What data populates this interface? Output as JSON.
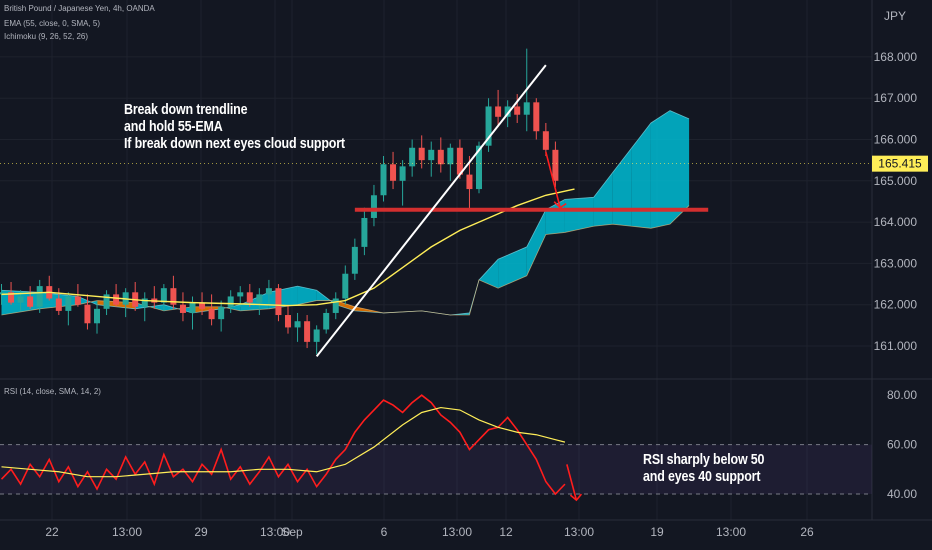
{
  "header": {
    "symbol_line": "British Pound / Japanese Yen, 4h, OANDA",
    "ema_line": "EMA (55, close, 0, SMA, 5)",
    "ichimoku_line": "Ichimoku (9, 26, 52, 26)",
    "rsi_line": "RSI (14, close, SMA, 14, 2)",
    "currency": "JPY"
  },
  "annotations": {
    "main": [
      "Break down trendline",
      "and hold 55-EMA",
      "If break down next eyes cloud support"
    ],
    "rsi": [
      "RSI sharply below 50",
      "and eyes 40 support"
    ]
  },
  "colors": {
    "background": "#131722",
    "up_candle": "#26a69a",
    "down_candle": "#ef5350",
    "ema": "#ffee58",
    "cloud_bull": "#00bcd4",
    "cloud_bear": "#f57c00",
    "trendline": "#ffffff",
    "support": "#d32f2f",
    "rsi": "#ff1d1d",
    "rsi_ma": "#ffee58",
    "price_tag": "#ffee58"
  },
  "chart_data": [
    {
      "type": "candlestick",
      "title": "British Pound / Japanese Yen, 4h, OANDA",
      "y_axis": {
        "unit": "JPY",
        "ticks": [
          "161.000",
          "162.000",
          "163.000",
          "164.000",
          "165.000",
          "166.000",
          "167.000",
          "168.000"
        ],
        "range": [
          160.55,
          168.4
        ]
      },
      "x_axis": {
        "ticks": [
          "22",
          "13:00",
          "29",
          "13:00",
          "Sep",
          "6",
          "13:00",
          "12",
          "13:00",
          "19",
          "13:00",
          "26"
        ]
      },
      "last_price": "165.415",
      "ema_55_path": [
        [
          0,
          162.25
        ],
        [
          5,
          162.3
        ],
        [
          10,
          162.2
        ],
        [
          15,
          162.1
        ],
        [
          20,
          162.05
        ],
        [
          25,
          162.02
        ],
        [
          30,
          161.98
        ],
        [
          33,
          162.0
        ],
        [
          36,
          162.1
        ],
        [
          39,
          162.4
        ],
        [
          42,
          162.9
        ],
        [
          45,
          163.4
        ],
        [
          48,
          163.8
        ],
        [
          51,
          164.1
        ],
        [
          54,
          164.4
        ],
        [
          57,
          164.65
        ],
        [
          60,
          164.8
        ]
      ],
      "trendline": {
        "from": [
          33,
          160.75
        ],
        "to": [
          57,
          167.8
        ]
      },
      "support_line": {
        "price": 164.3,
        "from": 37,
        "to": 74
      },
      "arrow": {
        "from": [
          57,
          165.7
        ],
        "to": [
          58.5,
          164.35
        ]
      },
      "ichimoku_cloud": [
        [
          0,
          162.35,
          161.75
        ],
        [
          4,
          162.3,
          161.9
        ],
        [
          8,
          162.2,
          162.0
        ],
        [
          10,
          162.0,
          162.1
        ],
        [
          14,
          161.9,
          162.05
        ],
        [
          17,
          162.0,
          161.85
        ],
        [
          20,
          161.8,
          161.95
        ],
        [
          23,
          161.9,
          161.95
        ],
        [
          25,
          162.0,
          161.85
        ],
        [
          28,
          162.3,
          161.9
        ],
        [
          31,
          162.45,
          162.0
        ],
        [
          33,
          162.35,
          162.1
        ],
        [
          35,
          162.0,
          162.1
        ],
        [
          37,
          161.85,
          161.95
        ],
        [
          40,
          161.8,
          161.8
        ],
        [
          44,
          161.85,
          161.85
        ],
        [
          47,
          161.75,
          161.75
        ],
        [
          49,
          161.8,
          161.75
        ],
        [
          50,
          162.6,
          162.6
        ],
        [
          52,
          163.1,
          162.4
        ],
        [
          55,
          163.4,
          162.7
        ],
        [
          57,
          164.3,
          163.7
        ],
        [
          59,
          164.55,
          163.75
        ],
        [
          62,
          164.6,
          163.9
        ],
        [
          64,
          165.2,
          163.95
        ],
        [
          66,
          165.8,
          163.9
        ],
        [
          68,
          166.4,
          163.85
        ],
        [
          70,
          166.7,
          163.95
        ],
        [
          72,
          166.5,
          164.4
        ]
      ],
      "candles": [
        [
          0,
          162.25,
          162.5,
          162.0,
          162.3
        ],
        [
          1,
          162.3,
          162.55,
          162.0,
          162.05
        ],
        [
          2,
          162.05,
          162.35,
          161.85,
          162.2
        ],
        [
          3,
          162.2,
          162.45,
          161.9,
          161.95
        ],
        [
          4,
          161.95,
          162.6,
          161.8,
          162.45
        ],
        [
          5,
          162.45,
          162.7,
          162.1,
          162.15
        ],
        [
          6,
          162.15,
          162.4,
          161.75,
          161.85
        ],
        [
          7,
          161.85,
          162.3,
          161.5,
          162.2
        ],
        [
          8,
          162.2,
          162.5,
          161.95,
          162.0
        ],
        [
          9,
          162.0,
          162.25,
          161.4,
          161.55
        ],
        [
          10,
          161.55,
          162.1,
          161.3,
          161.9
        ],
        [
          11,
          161.9,
          162.35,
          161.75,
          162.25
        ],
        [
          12,
          162.25,
          162.5,
          161.95,
          162.0
        ],
        [
          13,
          162.0,
          162.4,
          161.7,
          162.3
        ],
        [
          14,
          162.3,
          162.55,
          161.85,
          161.95
        ],
        [
          15,
          161.95,
          162.3,
          161.6,
          162.15
        ],
        [
          16,
          162.15,
          162.45,
          161.9,
          162.05
        ],
        [
          17,
          162.05,
          162.5,
          161.85,
          162.4
        ],
        [
          18,
          162.4,
          162.7,
          161.9,
          162.0
        ],
        [
          19,
          162.0,
          162.3,
          161.6,
          161.8
        ],
        [
          20,
          161.8,
          162.2,
          161.4,
          162.05
        ],
        [
          21,
          162.05,
          162.3,
          161.75,
          161.9
        ],
        [
          22,
          161.9,
          162.25,
          161.5,
          161.65
        ],
        [
          23,
          161.65,
          162.1,
          161.35,
          161.95
        ],
        [
          24,
          161.95,
          162.35,
          161.8,
          162.2
        ],
        [
          25,
          162.2,
          162.45,
          161.95,
          162.3
        ],
        [
          26,
          162.3,
          162.5,
          161.95,
          162.05
        ],
        [
          27,
          162.05,
          162.4,
          161.75,
          162.25
        ],
        [
          28,
          162.25,
          162.6,
          162.0,
          162.4
        ],
        [
          29,
          162.4,
          162.5,
          161.6,
          161.75
        ],
        [
          30,
          161.75,
          162.0,
          161.3,
          161.45
        ],
        [
          31,
          161.45,
          161.8,
          161.1,
          161.6
        ],
        [
          32,
          161.6,
          161.75,
          160.95,
          161.1
        ],
        [
          33,
          161.1,
          161.5,
          160.8,
          161.4
        ],
        [
          34,
          161.4,
          161.9,
          161.3,
          161.8
        ],
        [
          35,
          161.8,
          162.3,
          161.65,
          162.15
        ],
        [
          36,
          162.15,
          162.95,
          162.0,
          162.75
        ],
        [
          37,
          162.75,
          163.6,
          162.6,
          163.4
        ],
        [
          38,
          163.4,
          164.35,
          163.2,
          164.1
        ],
        [
          39,
          164.1,
          164.9,
          163.9,
          164.65
        ],
        [
          40,
          164.65,
          165.6,
          164.5,
          165.4
        ],
        [
          41,
          165.4,
          165.7,
          164.8,
          165.0
        ],
        [
          42,
          165.0,
          165.5,
          164.4,
          165.35
        ],
        [
          43,
          165.35,
          166.0,
          165.1,
          165.8
        ],
        [
          44,
          165.8,
          166.1,
          165.3,
          165.5
        ],
        [
          45,
          165.5,
          165.95,
          165.1,
          165.75
        ],
        [
          46,
          165.75,
          166.05,
          165.2,
          165.4
        ],
        [
          47,
          165.4,
          165.9,
          165.0,
          165.8
        ],
        [
          48,
          165.8,
          166.0,
          165.05,
          165.15
        ],
        [
          49,
          165.15,
          165.6,
          164.3,
          164.8
        ],
        [
          50,
          164.8,
          165.95,
          164.7,
          165.85
        ],
        [
          51,
          165.85,
          167.0,
          165.7,
          166.8
        ],
        [
          52,
          166.8,
          167.2,
          166.3,
          166.55
        ],
        [
          53,
          166.55,
          166.95,
          166.3,
          166.8
        ],
        [
          54,
          166.8,
          167.1,
          166.4,
          166.6
        ],
        [
          55,
          166.6,
          168.2,
          166.2,
          166.9
        ],
        [
          56,
          166.9,
          167.0,
          166.0,
          166.2
        ],
        [
          57,
          166.2,
          166.4,
          165.6,
          165.75
        ],
        [
          58,
          165.75,
          165.95,
          164.85,
          165.0
        ]
      ]
    },
    {
      "type": "line",
      "title": "RSI (14, close, SMA, 14, 2)",
      "y_axis": {
        "ticks": [
          "40.00",
          "60.00",
          "80.00"
        ],
        "range": [
          35,
          82
        ],
        "band": [
          40,
          60
        ]
      },
      "series": [
        {
          "values": [
            [
              0,
              46
            ],
            [
              1,
              50
            ],
            [
              2,
              44
            ],
            [
              3,
              52
            ],
            [
              4,
              47
            ],
            [
              5,
              54
            ],
            [
              6,
              45
            ],
            [
              7,
              51
            ],
            [
              8,
              43
            ],
            [
              9,
              49
            ],
            [
              10,
              42
            ],
            [
              11,
              50
            ],
            [
              12,
              46
            ],
            [
              13,
              55
            ],
            [
              14,
              48
            ],
            [
              15,
              53
            ],
            [
              16,
              44
            ],
            [
              17,
              56
            ],
            [
              18,
              47
            ],
            [
              19,
              50
            ],
            [
              20,
              45
            ],
            [
              21,
              52
            ],
            [
              22,
              48
            ],
            [
              23,
              58
            ],
            [
              24,
              46
            ],
            [
              25,
              51
            ],
            [
              26,
              44
            ],
            [
              27,
              49
            ],
            [
              28,
              55
            ],
            [
              29,
              47
            ],
            [
              30,
              52
            ],
            [
              31,
              45
            ],
            [
              32,
              50
            ],
            [
              33,
              43
            ],
            [
              34,
              48
            ],
            [
              35,
              54
            ],
            [
              36,
              58
            ],
            [
              37,
              65
            ],
            [
              38,
              70
            ],
            [
              39,
              74
            ],
            [
              40,
              78
            ],
            [
              41,
              76
            ],
            [
              42,
              73
            ],
            [
              43,
              77
            ],
            [
              44,
              80
            ],
            [
              45,
              77
            ],
            [
              46,
              72
            ],
            [
              47,
              69
            ],
            [
              48,
              65
            ],
            [
              49,
              58
            ],
            [
              50,
              62
            ],
            [
              51,
              66
            ],
            [
              52,
              67
            ],
            [
              53,
              71
            ],
            [
              54,
              66
            ],
            [
              55,
              60
            ],
            [
              56,
              54
            ],
            [
              57,
              45
            ],
            [
              58,
              40
            ],
            [
              59,
              44
            ]
          ]
        },
        {
          "values": [
            [
              0,
              51
            ],
            [
              3,
              50
            ],
            [
              6,
              49
            ],
            [
              9,
              47
            ],
            [
              12,
              47
            ],
            [
              15,
              48
            ],
            [
              18,
              49
            ],
            [
              21,
              49
            ],
            [
              24,
              49
            ],
            [
              27,
              50
            ],
            [
              30,
              50
            ],
            [
              33,
              49
            ],
            [
              36,
              52
            ],
            [
              39,
              59
            ],
            [
              42,
              68
            ],
            [
              44,
              73
            ],
            [
              46,
              75
            ],
            [
              48,
              74
            ],
            [
              50,
              70
            ],
            [
              52,
              67
            ],
            [
              54,
              65
            ],
            [
              56,
              64
            ],
            [
              58,
              62
            ],
            [
              59,
              61
            ]
          ]
        }
      ]
    }
  ]
}
